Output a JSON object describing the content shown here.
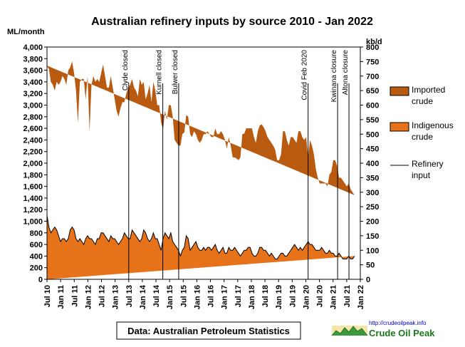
{
  "chart_data": {
    "type": "area",
    "title": "Australian refinery inputs by source 2010 - Jan 2022",
    "ylabel_left": "ML/month",
    "ylabel_right": "kb/d",
    "ylim_left": [
      0,
      4000
    ],
    "ylim_right": [
      0,
      800
    ],
    "yticks_left": [
      "0",
      "200",
      "400",
      "600",
      "800",
      "1,000",
      "1,200",
      "1,400",
      "1,600",
      "1,800",
      "2,000",
      "2,200",
      "2,400",
      "2,600",
      "2,800",
      "3,000",
      "3,200",
      "3,400",
      "3,600",
      "3,800",
      "4,000"
    ],
    "yticks_right": [
      "0",
      "50",
      "100",
      "150",
      "200",
      "250",
      "300",
      "350",
      "400",
      "450",
      "500",
      "550",
      "600",
      "650",
      "700",
      "750",
      "800"
    ],
    "xticks": [
      "Jul 10",
      "Jan 11",
      "Jul 11",
      "Jan 12",
      "Jul 12",
      "Jan 13",
      "Jul 13",
      "Jan 14",
      "Jul 14",
      "Jan 15",
      "Jul 15",
      "Jan 16",
      "Jul 16",
      "Jan 17",
      "Jul 17",
      "Jan 18",
      "Jul 18",
      "Jan 19",
      "Jul 19",
      "Jan 20",
      "Jul 20",
      "Jan 21",
      "Jul 21",
      "Jan 22"
    ],
    "x_start": "2010-07",
    "x_end": "2022-01",
    "series": [
      {
        "name": "Imported crude",
        "color": "#b85a0f",
        "values": [
          2580,
          2720,
          2600,
          2500,
          2350,
          2550,
          2600,
          2750,
          2800,
          2750,
          2700,
          2900,
          2800,
          2850,
          2700,
          2550,
          2050,
          2700,
          2800,
          2850,
          2400,
          2750,
          1850,
          2650,
          2850,
          2800,
          2750,
          2700,
          2750,
          2900,
          2750,
          2600,
          2650,
          2750,
          2600,
          2400,
          2250,
          2200,
          2300,
          2350,
          2250,
          2450,
          2600,
          2650,
          2600,
          2500,
          2500,
          2450,
          2800,
          2650,
          2550,
          2300,
          2500,
          2700,
          2350,
          2600,
          2550,
          2300,
          2400,
          2200,
          1880,
          2100,
          2000,
          2300,
          2200,
          2150,
          1800,
          1800,
          1800,
          1900,
          2000,
          1980,
          2080,
          2100,
          2000,
          1900,
          1950,
          1850,
          1850,
          1850,
          1900,
          1950,
          2000,
          2000,
          1950,
          1950,
          1900,
          2000,
          2000,
          2050,
          2050,
          1950,
          1950,
          1800,
          1900,
          1800,
          1600,
          1550,
          1580,
          1600,
          1700,
          2050,
          2010,
          2100,
          2050,
          2050,
          2150,
          2050,
          1950,
          2100,
          2100,
          2120,
          2120,
          2050,
          2000,
          2000,
          1900,
          1900,
          1880,
          1700,
          1650,
          1700,
          2100,
          2150,
          2000,
          1850,
          1950,
          1900,
          1800,
          1800,
          2050,
          2000,
          1950,
          1850,
          1850,
          1450,
          1800,
          1700,
          1600,
          1400,
          1250,
          1150,
          1100,
          1150,
          1200,
          1150,
          1300,
          1400,
          1600,
          1650,
          1550,
          1300,
          1350,
          1350,
          1300,
          1250,
          1250,
          1200,
          1150,
          1050,
          950,
          900,
          1000
        ]
      },
      {
        "name": "Indigenous crude",
        "color": "#e6731a",
        "values": [
          1100,
          900,
          800,
          850,
          900,
          850,
          750,
          650,
          700,
          700,
          650,
          700,
          850,
          900,
          850,
          700,
          650,
          700,
          650,
          600,
          700,
          750,
          700,
          700,
          650,
          600,
          700,
          700,
          800,
          800,
          750,
          700,
          650,
          750,
          700,
          700,
          650,
          600,
          650,
          700,
          800,
          750,
          700,
          700,
          850,
          800,
          750,
          700,
          650,
          700,
          850,
          800,
          700,
          650,
          700,
          800,
          700,
          700,
          600,
          500,
          700,
          800,
          750,
          700,
          800,
          650,
          600,
          550,
          500,
          400,
          500,
          550,
          750,
          700,
          500,
          550,
          600,
          650,
          550,
          500,
          500,
          550,
          500,
          550,
          550,
          500,
          550,
          600,
          500,
          450,
          500,
          550,
          450,
          450,
          550,
          500,
          500,
          550,
          500,
          450,
          400,
          450,
          500,
          500,
          550,
          550,
          450,
          400,
          400,
          450,
          550,
          550,
          500,
          500,
          450,
          400,
          450,
          400,
          350,
          350,
          400,
          450,
          450,
          400,
          400,
          450,
          500,
          550,
          600,
          550,
          500,
          550,
          500,
          550,
          600,
          650,
          600,
          600,
          550,
          500,
          500,
          500,
          550,
          500,
          450,
          450,
          500,
          450,
          450,
          400,
          400,
          450,
          400,
          350,
          350,
          350,
          400,
          350,
          350,
          400
        ]
      }
    ],
    "line_series": {
      "name": "Refinery input",
      "color": "#000000"
    },
    "annotations": [
      {
        "text": "Clyde closed",
        "date": "2013-07"
      },
      {
        "text": "Kurnell closed",
        "date": "2014-10"
      },
      {
        "text": "Bulwer closed",
        "date": "2015-05"
      },
      {
        "text": "Covid Feb 2020",
        "date": "2020-02"
      },
      {
        "text": "Kwinana closure",
        "date": "2021-03"
      },
      {
        "text": "Altona closure",
        "date": "2021-08"
      }
    ],
    "legend": [
      {
        "label_line1": "Imported",
        "label_line2": "crude",
        "kind": "swatch",
        "color": "#b85a0f"
      },
      {
        "label_line1": "Indigenous",
        "label_line2": "crude",
        "kind": "swatch",
        "color": "#e6731a"
      },
      {
        "label_line1": "Refinery",
        "label_line2": "input",
        "kind": "line",
        "color": "#000000"
      }
    ],
    "legend_position": "right",
    "grid": false
  },
  "source_note": "Data: Australian Petroleum Statistics",
  "logo": {
    "url_text": "http://crudeoilpeak.info",
    "brand_text": "Crude Oil Peak"
  }
}
